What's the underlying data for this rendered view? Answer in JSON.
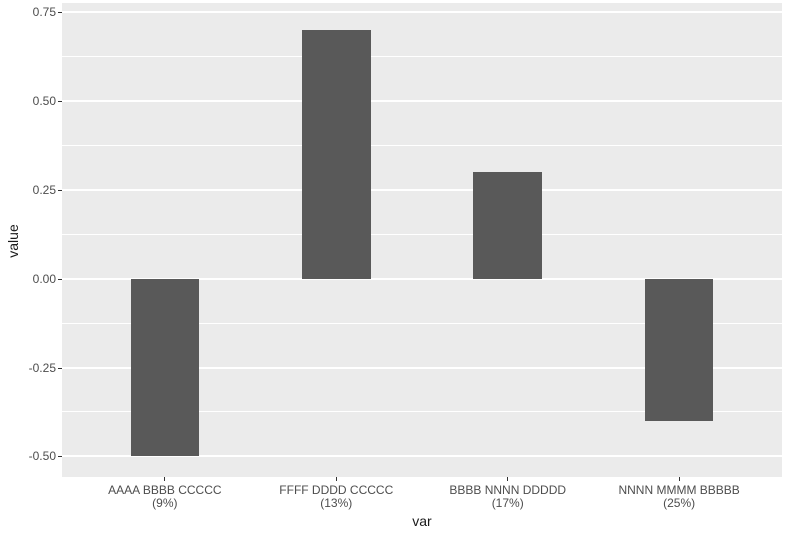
{
  "chart_data": {
    "type": "bar",
    "title": "",
    "xlabel": "var",
    "ylabel": "value",
    "categories": [
      "AAAA BBBB CCCCC",
      "FFFF DDDD CCCCC",
      "BBBB NNNN DDDDD",
      "NNNN MMMM BBBBB"
    ],
    "category_sublabels": [
      "(9%)",
      "(13%)",
      "(17%)",
      "(25%)"
    ],
    "values": [
      -0.5,
      0.7,
      0.3,
      -0.4
    ],
    "y_ticks": [
      0.75,
      0.5,
      0.25,
      0,
      -0.25,
      -0.5
    ],
    "y_tick_labels": [
      "0.75",
      "0.50",
      "0.25",
      "0.00",
      "-0.25",
      "-0.50"
    ],
    "y_minor_ticks": [
      0.625,
      0.375,
      0.125,
      -0.125,
      -0.375
    ],
    "ylim": [
      -0.558,
      0.776
    ],
    "grid": true,
    "legend": "none",
    "colors": {
      "bar": "#595959",
      "panel_bg": "#EBEBEB",
      "grid": "#FFFFFF",
      "tick_text": "#4D4D4D",
      "axis_title": "#1A1A1A",
      "tick_mark": "#333333",
      "page_bg": "#FFFFFF"
    }
  }
}
